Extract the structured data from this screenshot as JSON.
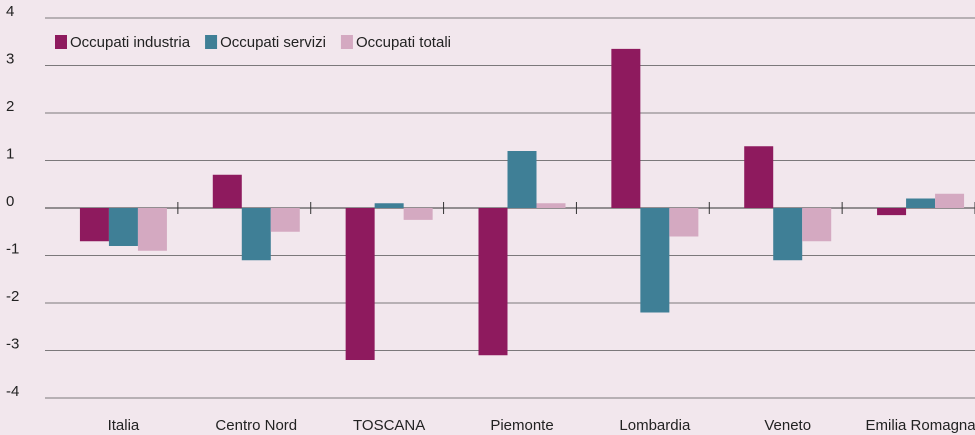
{
  "chart_data": {
    "type": "bar",
    "categories": [
      "Italia",
      "Centro Nord",
      "TOSCANA",
      "Piemonte",
      "Lombardia",
      "Veneto",
      "Emilia Romagna"
    ],
    "category_label_colors": [
      "#222222",
      "#222222",
      "#8e1a5e",
      "#222222",
      "#222222",
      "#222222",
      "#222222"
    ],
    "series": [
      {
        "name": "Occupati industria",
        "color": "#8e1a5e",
        "values": [
          -0.7,
          0.7,
          -3.2,
          -3.1,
          3.35,
          1.3,
          -0.15
        ]
      },
      {
        "name": "Occupati servizi",
        "color": "#3f7f96",
        "values": [
          -0.8,
          -1.1,
          0.1,
          1.2,
          -2.2,
          -1.1,
          0.2
        ]
      },
      {
        "name": "Occupati totali",
        "color": "#d4a9c1",
        "values": [
          -0.9,
          -0.5,
          -0.25,
          0.1,
          -0.6,
          -0.7,
          0.3
        ]
      }
    ],
    "ylim": [
      -4,
      4
    ],
    "yticks": [
      -4,
      -3,
      -2,
      -1,
      0,
      1,
      2,
      3,
      4
    ],
    "grid": true,
    "legend": "top-left"
  }
}
